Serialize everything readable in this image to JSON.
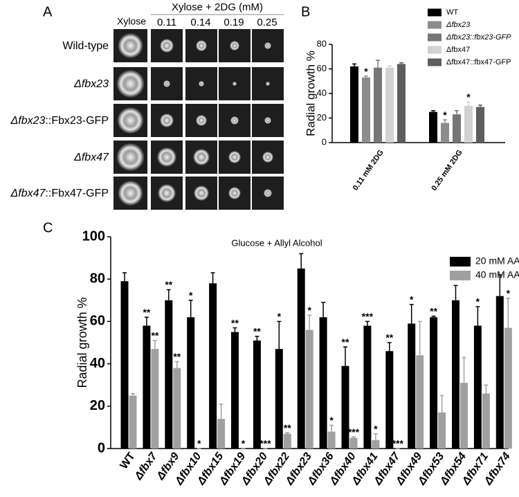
{
  "panel_a": {
    "panel_label": "A",
    "column_header": "Xylose",
    "group_header": "Xylose + 2DG (mM)",
    "concentrations": [
      "0.11",
      "0.14",
      "0.19",
      "0.25"
    ],
    "rows": [
      {
        "strain": "Wild-type"
      },
      {
        "strain": "Δfbx23"
      },
      {
        "strain": "Δfbx23",
        "suffix": "::Fbx23-GFP"
      },
      {
        "strain": "Δfbx47"
      },
      {
        "strain": "Δfbx47",
        "suffix": "::Fbx47-GFP"
      }
    ]
  },
  "chart_data": [
    {
      "type": "bar",
      "panel_label": "B",
      "y_label": "Radial growth %",
      "categories": [
        "0.11 mM 2DG",
        "0.25 mM 2DG"
      ],
      "ylim": [
        0,
        80
      ],
      "yticks": [
        0,
        20,
        40,
        60,
        80
      ],
      "legend": "top-right",
      "series": [
        {
          "name": "WT",
          "color": "#000000",
          "italic": false,
          "values": [
            62,
            25
          ],
          "errors": [
            2,
            1
          ],
          "significance": [
            null,
            null
          ]
        },
        {
          "name": "Δfbx23",
          "color": "#8c8c8c",
          "italic": true,
          "values": [
            53,
            16
          ],
          "errors": [
            1,
            2.5
          ],
          "significance": [
            "*",
            "*"
          ]
        },
        {
          "name": "Δfbx23::fbx23-GFP",
          "color": "#767676",
          "italic": true,
          "values": [
            61,
            23
          ],
          "errors": [
            6,
            3
          ],
          "significance": [
            null,
            null
          ]
        },
        {
          "name": "Δfbx47",
          "color": "#d2d2d2",
          "italic": false,
          "values": [
            61,
            30
          ],
          "errors": [
            1.5,
            3
          ],
          "significance": [
            null,
            "*"
          ]
        },
        {
          "name": "Δfbx47::fbx47-GFP",
          "color": "#5e5e5e",
          "italic": false,
          "values": [
            64,
            29
          ],
          "errors": [
            1,
            1.5
          ],
          "significance": [
            null,
            null
          ]
        }
      ]
    },
    {
      "type": "bar",
      "panel_label": "C",
      "title": "Glucose + Allyl Alcohol",
      "y_label": "Radial growth %",
      "categories": [
        "WT",
        "Δfbx7",
        "Δfbx9",
        "Δfbx10",
        "Δfbx15",
        "Δfbx19",
        "Δfbx20",
        "Δfbx22",
        "Δfbx23",
        "Δfbx36",
        "Δfbx40",
        "Δfbx41",
        "Δfbx47",
        "Δfbx49",
        "Δfbx53",
        "Δfbx54",
        "Δfbx71",
        "Δfbx74"
      ],
      "ylim": [
        0,
        100
      ],
      "yticks": [
        0,
        20,
        40,
        60,
        80,
        100
      ],
      "legend": "top-right",
      "series": [
        {
          "name": "20 mM AA",
          "color": "#000000",
          "italic": false,
          "values": [
            79,
            58,
            70,
            62,
            78,
            55,
            51,
            47,
            85,
            62,
            39,
            58,
            46,
            59,
            62,
            70,
            58,
            72
          ],
          "errors": [
            4,
            4,
            5,
            8,
            5,
            2,
            2,
            13,
            7,
            7,
            9,
            2,
            4,
            9,
            0.5,
            7,
            9,
            10
          ],
          "significance": [
            null,
            "**",
            "**",
            "*",
            null,
            "**",
            "**",
            "*",
            null,
            null,
            "**",
            "***",
            "**",
            "*",
            "**",
            null,
            "*",
            null
          ]
        },
        {
          "name": "40 mM AA",
          "color": "#a0a0a0",
          "italic": false,
          "values": [
            25,
            47,
            38,
            0,
            14,
            0,
            0,
            7,
            56,
            8,
            5,
            4,
            0,
            44,
            17,
            31,
            26,
            57
          ],
          "errors": [
            1,
            4,
            3,
            0,
            7,
            0,
            0,
            0.5,
            7,
            3,
            0.5,
            3,
            0,
            16,
            8,
            12,
            4,
            14
          ],
          "significance": [
            null,
            "**",
            "**",
            "*",
            null,
            "*",
            "***",
            "**",
            "*",
            "*",
            "***",
            "*",
            "***",
            null,
            null,
            null,
            null,
            "*"
          ]
        }
      ]
    }
  ]
}
